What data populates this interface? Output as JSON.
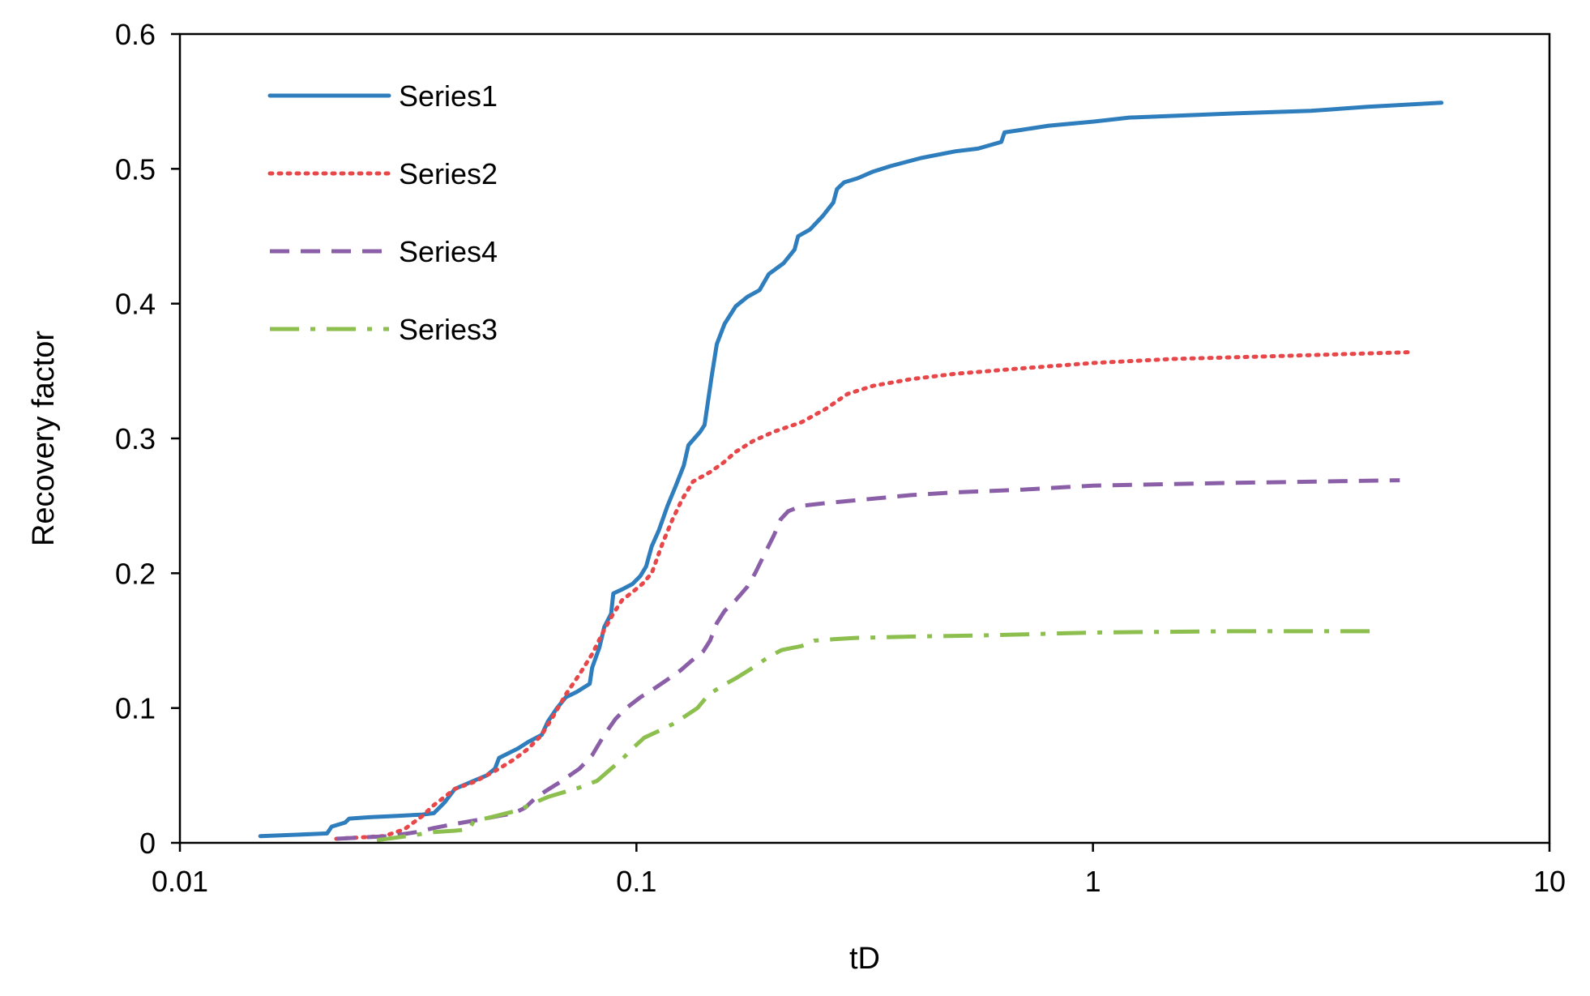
{
  "chart_data": {
    "type": "line",
    "title": "",
    "xlabel": "tD",
    "ylabel": "Recovery factor",
    "xscale": "log",
    "xlim": [
      0.01,
      10
    ],
    "ylim": [
      0,
      0.6
    ],
    "grid": false,
    "legend_position": "top-left",
    "x_ticks": [
      {
        "value": 0.01,
        "label": "0.01"
      },
      {
        "value": 0.1,
        "label": "0.1"
      },
      {
        "value": 1,
        "label": "1"
      },
      {
        "value": 10,
        "label": "10"
      }
    ],
    "y_ticks": [
      {
        "value": 0,
        "label": "0"
      },
      {
        "value": 0.1,
        "label": "0.1"
      },
      {
        "value": 0.2,
        "label": "0.2"
      },
      {
        "value": 0.3,
        "label": "0.3"
      },
      {
        "value": 0.4,
        "label": "0.4"
      },
      {
        "value": 0.5,
        "label": "0.5"
      },
      {
        "value": 0.6,
        "label": "0.6"
      }
    ],
    "series": [
      {
        "name": "Series1",
        "color": "#2E7DBD",
        "style": "solid",
        "points": [
          [
            0.015,
            0.005
          ],
          [
            0.018,
            0.006
          ],
          [
            0.021,
            0.007
          ],
          [
            0.0215,
            0.012
          ],
          [
            0.023,
            0.015
          ],
          [
            0.0235,
            0.018
          ],
          [
            0.026,
            0.019
          ],
          [
            0.03,
            0.02
          ],
          [
            0.034,
            0.021
          ],
          [
            0.036,
            0.022
          ],
          [
            0.038,
            0.03
          ],
          [
            0.04,
            0.04
          ],
          [
            0.044,
            0.046
          ],
          [
            0.047,
            0.05
          ],
          [
            0.049,
            0.055
          ],
          [
            0.05,
            0.063
          ],
          [
            0.055,
            0.07
          ],
          [
            0.058,
            0.075
          ],
          [
            0.062,
            0.08
          ],
          [
            0.064,
            0.09
          ],
          [
            0.067,
            0.1
          ],
          [
            0.07,
            0.108
          ],
          [
            0.074,
            0.112
          ],
          [
            0.079,
            0.118
          ],
          [
            0.08,
            0.13
          ],
          [
            0.083,
            0.145
          ],
          [
            0.085,
            0.16
          ],
          [
            0.088,
            0.17
          ],
          [
            0.089,
            0.185
          ],
          [
            0.093,
            0.188
          ],
          [
            0.098,
            0.192
          ],
          [
            0.102,
            0.198
          ],
          [
            0.105,
            0.205
          ],
          [
            0.108,
            0.22
          ],
          [
            0.112,
            0.232
          ],
          [
            0.117,
            0.25
          ],
          [
            0.122,
            0.265
          ],
          [
            0.127,
            0.28
          ],
          [
            0.13,
            0.295
          ],
          [
            0.138,
            0.305
          ],
          [
            0.141,
            0.31
          ],
          [
            0.146,
            0.345
          ],
          [
            0.15,
            0.37
          ],
          [
            0.156,
            0.385
          ],
          [
            0.165,
            0.398
          ],
          [
            0.175,
            0.405
          ],
          [
            0.186,
            0.41
          ],
          [
            0.195,
            0.422
          ],
          [
            0.21,
            0.43
          ],
          [
            0.222,
            0.44
          ],
          [
            0.226,
            0.45
          ],
          [
            0.24,
            0.455
          ],
          [
            0.256,
            0.465
          ],
          [
            0.27,
            0.475
          ],
          [
            0.275,
            0.485
          ],
          [
            0.285,
            0.49
          ],
          [
            0.305,
            0.493
          ],
          [
            0.33,
            0.498
          ],
          [
            0.36,
            0.502
          ],
          [
            0.42,
            0.508
          ],
          [
            0.5,
            0.513
          ],
          [
            0.56,
            0.515
          ],
          [
            0.63,
            0.52
          ],
          [
            0.64,
            0.527
          ],
          [
            0.7,
            0.529
          ],
          [
            0.8,
            0.532
          ],
          [
            1.0,
            0.535
          ],
          [
            1.2,
            0.538
          ],
          [
            2.0,
            0.541
          ],
          [
            3.0,
            0.543
          ],
          [
            4.0,
            0.546
          ],
          [
            5.8,
            0.549
          ]
        ]
      },
      {
        "name": "Series2",
        "color": "#E8474A",
        "style": "dotted",
        "points": [
          [
            0.022,
            0.003
          ],
          [
            0.028,
            0.005
          ],
          [
            0.031,
            0.01
          ],
          [
            0.034,
            0.02
          ],
          [
            0.036,
            0.028
          ],
          [
            0.038,
            0.034
          ],
          [
            0.04,
            0.04
          ],
          [
            0.044,
            0.045
          ],
          [
            0.047,
            0.05
          ],
          [
            0.05,
            0.055
          ],
          [
            0.054,
            0.062
          ],
          [
            0.058,
            0.07
          ],
          [
            0.062,
            0.08
          ],
          [
            0.066,
            0.095
          ],
          [
            0.07,
            0.11
          ],
          [
            0.075,
            0.125
          ],
          [
            0.08,
            0.14
          ],
          [
            0.085,
            0.158
          ],
          [
            0.089,
            0.17
          ],
          [
            0.093,
            0.18
          ],
          [
            0.098,
            0.186
          ],
          [
            0.103,
            0.192
          ],
          [
            0.108,
            0.2
          ],
          [
            0.114,
            0.222
          ],
          [
            0.12,
            0.24
          ],
          [
            0.126,
            0.255
          ],
          [
            0.133,
            0.268
          ],
          [
            0.145,
            0.275
          ],
          [
            0.155,
            0.282
          ],
          [
            0.165,
            0.29
          ],
          [
            0.18,
            0.298
          ],
          [
            0.2,
            0.305
          ],
          [
            0.23,
            0.312
          ],
          [
            0.26,
            0.322
          ],
          [
            0.29,
            0.333
          ],
          [
            0.33,
            0.339
          ],
          [
            0.4,
            0.344
          ],
          [
            0.5,
            0.348
          ],
          [
            0.7,
            0.352
          ],
          [
            1.0,
            0.356
          ],
          [
            1.5,
            0.359
          ],
          [
            2.5,
            0.361
          ],
          [
            5.0,
            0.364
          ]
        ]
      },
      {
        "name": "Series4",
        "color": "#8B5FA8",
        "style": "dashed",
        "points": [
          [
            0.022,
            0.003
          ],
          [
            0.025,
            0.004
          ],
          [
            0.029,
            0.005
          ],
          [
            0.033,
            0.008
          ],
          [
            0.036,
            0.011
          ],
          [
            0.04,
            0.014
          ],
          [
            0.045,
            0.017
          ],
          [
            0.05,
            0.02
          ],
          [
            0.054,
            0.022
          ],
          [
            0.057,
            0.026
          ],
          [
            0.06,
            0.033
          ],
          [
            0.063,
            0.038
          ],
          [
            0.068,
            0.045
          ],
          [
            0.075,
            0.055
          ],
          [
            0.08,
            0.065
          ],
          [
            0.085,
            0.08
          ],
          [
            0.09,
            0.092
          ],
          [
            0.095,
            0.1
          ],
          [
            0.102,
            0.108
          ],
          [
            0.11,
            0.115
          ],
          [
            0.118,
            0.122
          ],
          [
            0.125,
            0.128
          ],
          [
            0.132,
            0.135
          ],
          [
            0.14,
            0.142
          ],
          [
            0.145,
            0.15
          ],
          [
            0.15,
            0.163
          ],
          [
            0.156,
            0.172
          ],
          [
            0.165,
            0.18
          ],
          [
            0.175,
            0.19
          ],
          [
            0.182,
            0.2
          ],
          [
            0.19,
            0.213
          ],
          [
            0.2,
            0.228
          ],
          [
            0.207,
            0.24
          ],
          [
            0.215,
            0.246
          ],
          [
            0.23,
            0.25
          ],
          [
            0.26,
            0.252
          ],
          [
            0.3,
            0.254
          ],
          [
            0.4,
            0.258
          ],
          [
            0.5,
            0.26
          ],
          [
            0.7,
            0.262
          ],
          [
            1.0,
            0.265
          ],
          [
            2.0,
            0.267
          ],
          [
            4.7,
            0.269
          ]
        ]
      },
      {
        "name": "Series3",
        "color": "#8CBF4E",
        "style": "dashdot",
        "points": [
          [
            0.027,
            0.002
          ],
          [
            0.03,
            0.004
          ],
          [
            0.033,
            0.006
          ],
          [
            0.036,
            0.008
          ],
          [
            0.04,
            0.009
          ],
          [
            0.043,
            0.01
          ],
          [
            0.044,
            0.016
          ],
          [
            0.048,
            0.019
          ],
          [
            0.052,
            0.022
          ],
          [
            0.055,
            0.024
          ],
          [
            0.06,
            0.03
          ],
          [
            0.064,
            0.034
          ],
          [
            0.07,
            0.038
          ],
          [
            0.075,
            0.041
          ],
          [
            0.082,
            0.046
          ],
          [
            0.088,
            0.055
          ],
          [
            0.093,
            0.062
          ],
          [
            0.098,
            0.07
          ],
          [
            0.104,
            0.078
          ],
          [
            0.112,
            0.083
          ],
          [
            0.12,
            0.088
          ],
          [
            0.128,
            0.094
          ],
          [
            0.136,
            0.1
          ],
          [
            0.144,
            0.11
          ],
          [
            0.155,
            0.117
          ],
          [
            0.165,
            0.122
          ],
          [
            0.18,
            0.13
          ],
          [
            0.195,
            0.138
          ],
          [
            0.208,
            0.143
          ],
          [
            0.23,
            0.146
          ],
          [
            0.245,
            0.15
          ],
          [
            0.27,
            0.151
          ],
          [
            0.3,
            0.152
          ],
          [
            0.4,
            0.153
          ],
          [
            0.6,
            0.154
          ],
          [
            1.0,
            0.156
          ],
          [
            2.0,
            0.157
          ],
          [
            4.2,
            0.157
          ]
        ]
      }
    ]
  }
}
